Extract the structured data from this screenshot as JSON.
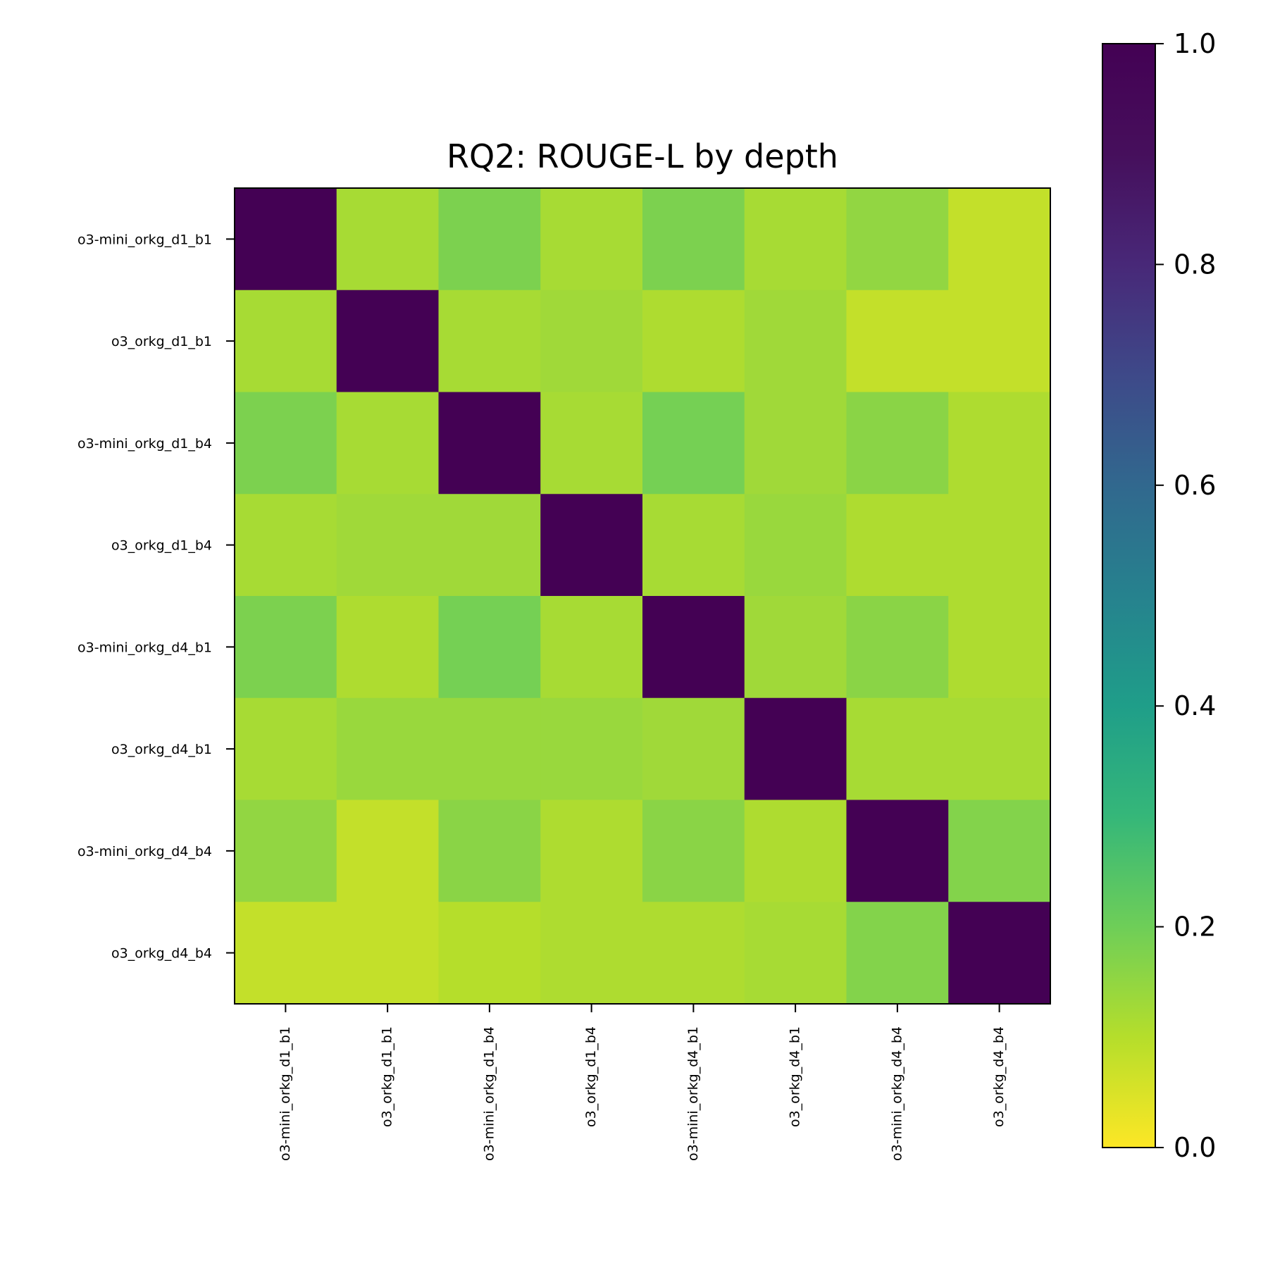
{
  "chart_data": {
    "type": "heatmap",
    "title": "RQ2: ROUGE-L by depth",
    "row_labels": [
      "o3-mini_orkg_d1_b1",
      "o3_orkg_d1_b1",
      "o3-mini_orkg_d1_b4",
      "o3_orkg_d1_b4",
      "o3-mini_orkg_d4_b1",
      "o3_orkg_d4_b1",
      "o3-mini_orkg_d4_b4",
      "o3_orkg_d4_b4"
    ],
    "col_labels": [
      "o3-mini_orkg_d1_b1",
      "o3_orkg_d1_b1",
      "o3-mini_orkg_d1_b4",
      "o3_orkg_d1_b4",
      "o3-mini_orkg_d4_b1",
      "o3_orkg_d4_b1",
      "o3-mini_orkg_d4_b4",
      "o3_orkg_d4_b4"
    ],
    "values": [
      [
        1.0,
        0.12,
        0.18,
        0.12,
        0.18,
        0.12,
        0.15,
        0.08
      ],
      [
        0.12,
        1.0,
        0.12,
        0.13,
        0.11,
        0.13,
        0.08,
        0.08
      ],
      [
        0.18,
        0.12,
        1.0,
        0.12,
        0.19,
        0.13,
        0.16,
        0.11
      ],
      [
        0.12,
        0.13,
        0.13,
        1.0,
        0.12,
        0.14,
        0.11,
        0.11
      ],
      [
        0.18,
        0.11,
        0.19,
        0.12,
        1.0,
        0.13,
        0.16,
        0.11
      ],
      [
        0.12,
        0.14,
        0.14,
        0.14,
        0.13,
        1.0,
        0.12,
        0.12
      ],
      [
        0.15,
        0.08,
        0.16,
        0.11,
        0.16,
        0.11,
        1.0,
        0.17
      ],
      [
        0.08,
        0.08,
        0.1,
        0.11,
        0.11,
        0.12,
        0.17,
        1.0
      ]
    ],
    "colormap": "viridis_r",
    "colorbar": {
      "range": [
        0.0,
        1.0
      ],
      "ticks": [
        0.0,
        0.2,
        0.4,
        0.6,
        0.8,
        1.0
      ],
      "tick_labels": [
        "0.0",
        "0.2",
        "0.4",
        "0.6",
        "0.8",
        "1.0"
      ]
    },
    "colors": {
      "frame": "#000000",
      "background": "#ffffff"
    }
  }
}
